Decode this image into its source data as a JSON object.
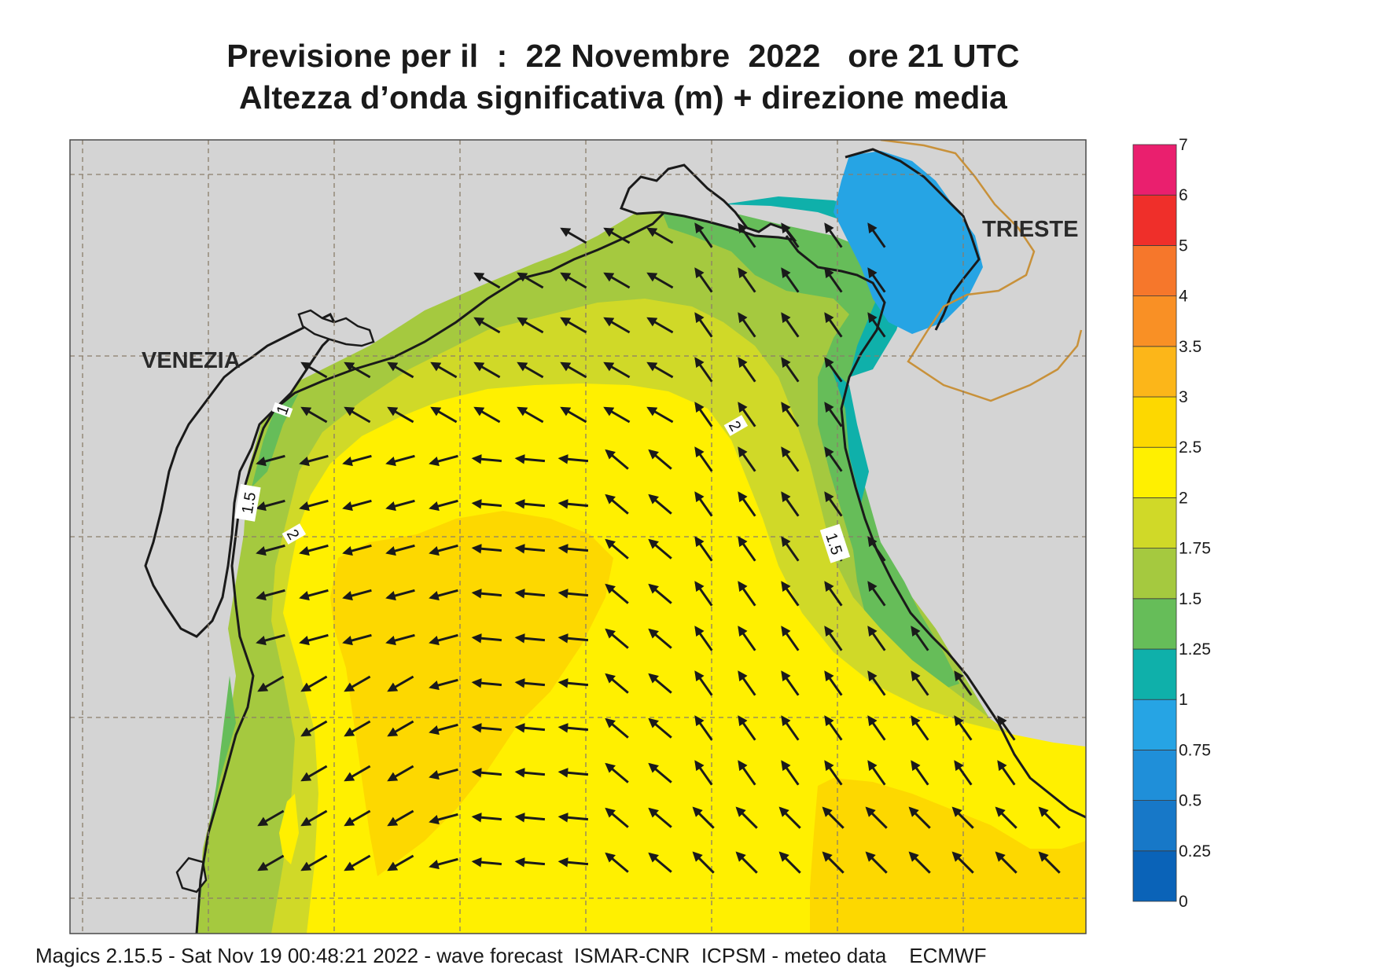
{
  "title": {
    "line1": "Previsione per il  :  22 Novembre  2022   ore 21 UTC",
    "line2": "Altezza d’onda significativa (m) + direzione media"
  },
  "cities": [
    {
      "name": "VENEZIA",
      "key": "venezia"
    },
    {
      "name": "TRIESTE",
      "key": "trieste"
    }
  ],
  "contour_labels": [
    "1",
    "1.5",
    "2",
    "2",
    "1.5"
  ],
  "colorbar": {
    "levels": [
      "0",
      "0.25",
      "0.5",
      "0.75",
      "1",
      "1.25",
      "1.5",
      "1.75",
      "2",
      "2.5",
      "3",
      "3.5",
      "4",
      "5",
      "6",
      "7"
    ],
    "colors": [
      "#0a63b8",
      "#1778c8",
      "#1f8fd9",
      "#26a4e4",
      "#0fb0aa",
      "#66bd59",
      "#a5c93f",
      "#d0d928",
      "#fff000",
      "#fdd800",
      "#fcb619",
      "#f99025",
      "#f6772b",
      "#ef2f2a",
      "#ea1f6e"
    ]
  },
  "colors": {
    "land": "#d4d4d4",
    "grid": "#8a7d6a",
    "border": "#c8913a",
    "arrow": "#1a1a1a"
  },
  "footer": "Magics 2.15.5 - Sat Nov 19 00:48:21 2022 - wave forecast  ISMAR-CNR  ICPSM - meteo data    ECMWF"
}
